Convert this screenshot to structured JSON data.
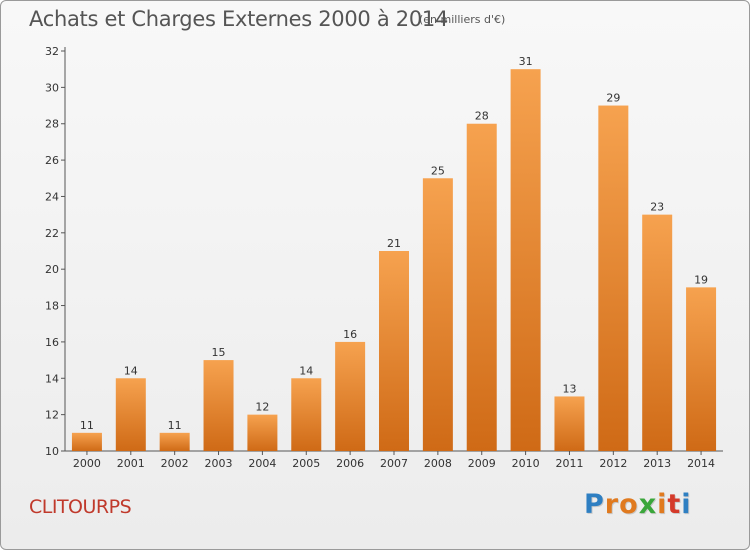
{
  "header": {
    "title": "Achats et Charges Externes 2000 à 2014",
    "subtitle": "(en milliers d'€)"
  },
  "footer": {
    "commune": "CLITOURPS",
    "logo_letters": [
      "P",
      "r",
      "o",
      "x",
      "i",
      "t",
      "i"
    ],
    "logo_colors": [
      "#2e7fc2",
      "#e07a1f",
      "#e07a1f",
      "#3aa63a",
      "#e07a1f",
      "#d43a2a",
      "#2e7fc2"
    ]
  },
  "chart_data": {
    "type": "bar",
    "title": "Achats et Charges Externes 2000 à 2014",
    "subtitle": "(en milliers d'€)",
    "categories": [
      "2000",
      "2001",
      "2002",
      "2003",
      "2004",
      "2005",
      "2006",
      "2007",
      "2008",
      "2009",
      "2010",
      "2011",
      "2012",
      "2013",
      "2014"
    ],
    "values": [
      11,
      14,
      11,
      15,
      12,
      14,
      16,
      21,
      25,
      28,
      31,
      13,
      29,
      23,
      19
    ],
    "ylim": [
      10,
      32
    ],
    "yticks": [
      10,
      12,
      14,
      16,
      18,
      20,
      22,
      24,
      26,
      28,
      30,
      32
    ],
    "grid": false,
    "bar_color_top": "#f6a24f",
    "bar_color_bottom": "#cf6a16"
  }
}
